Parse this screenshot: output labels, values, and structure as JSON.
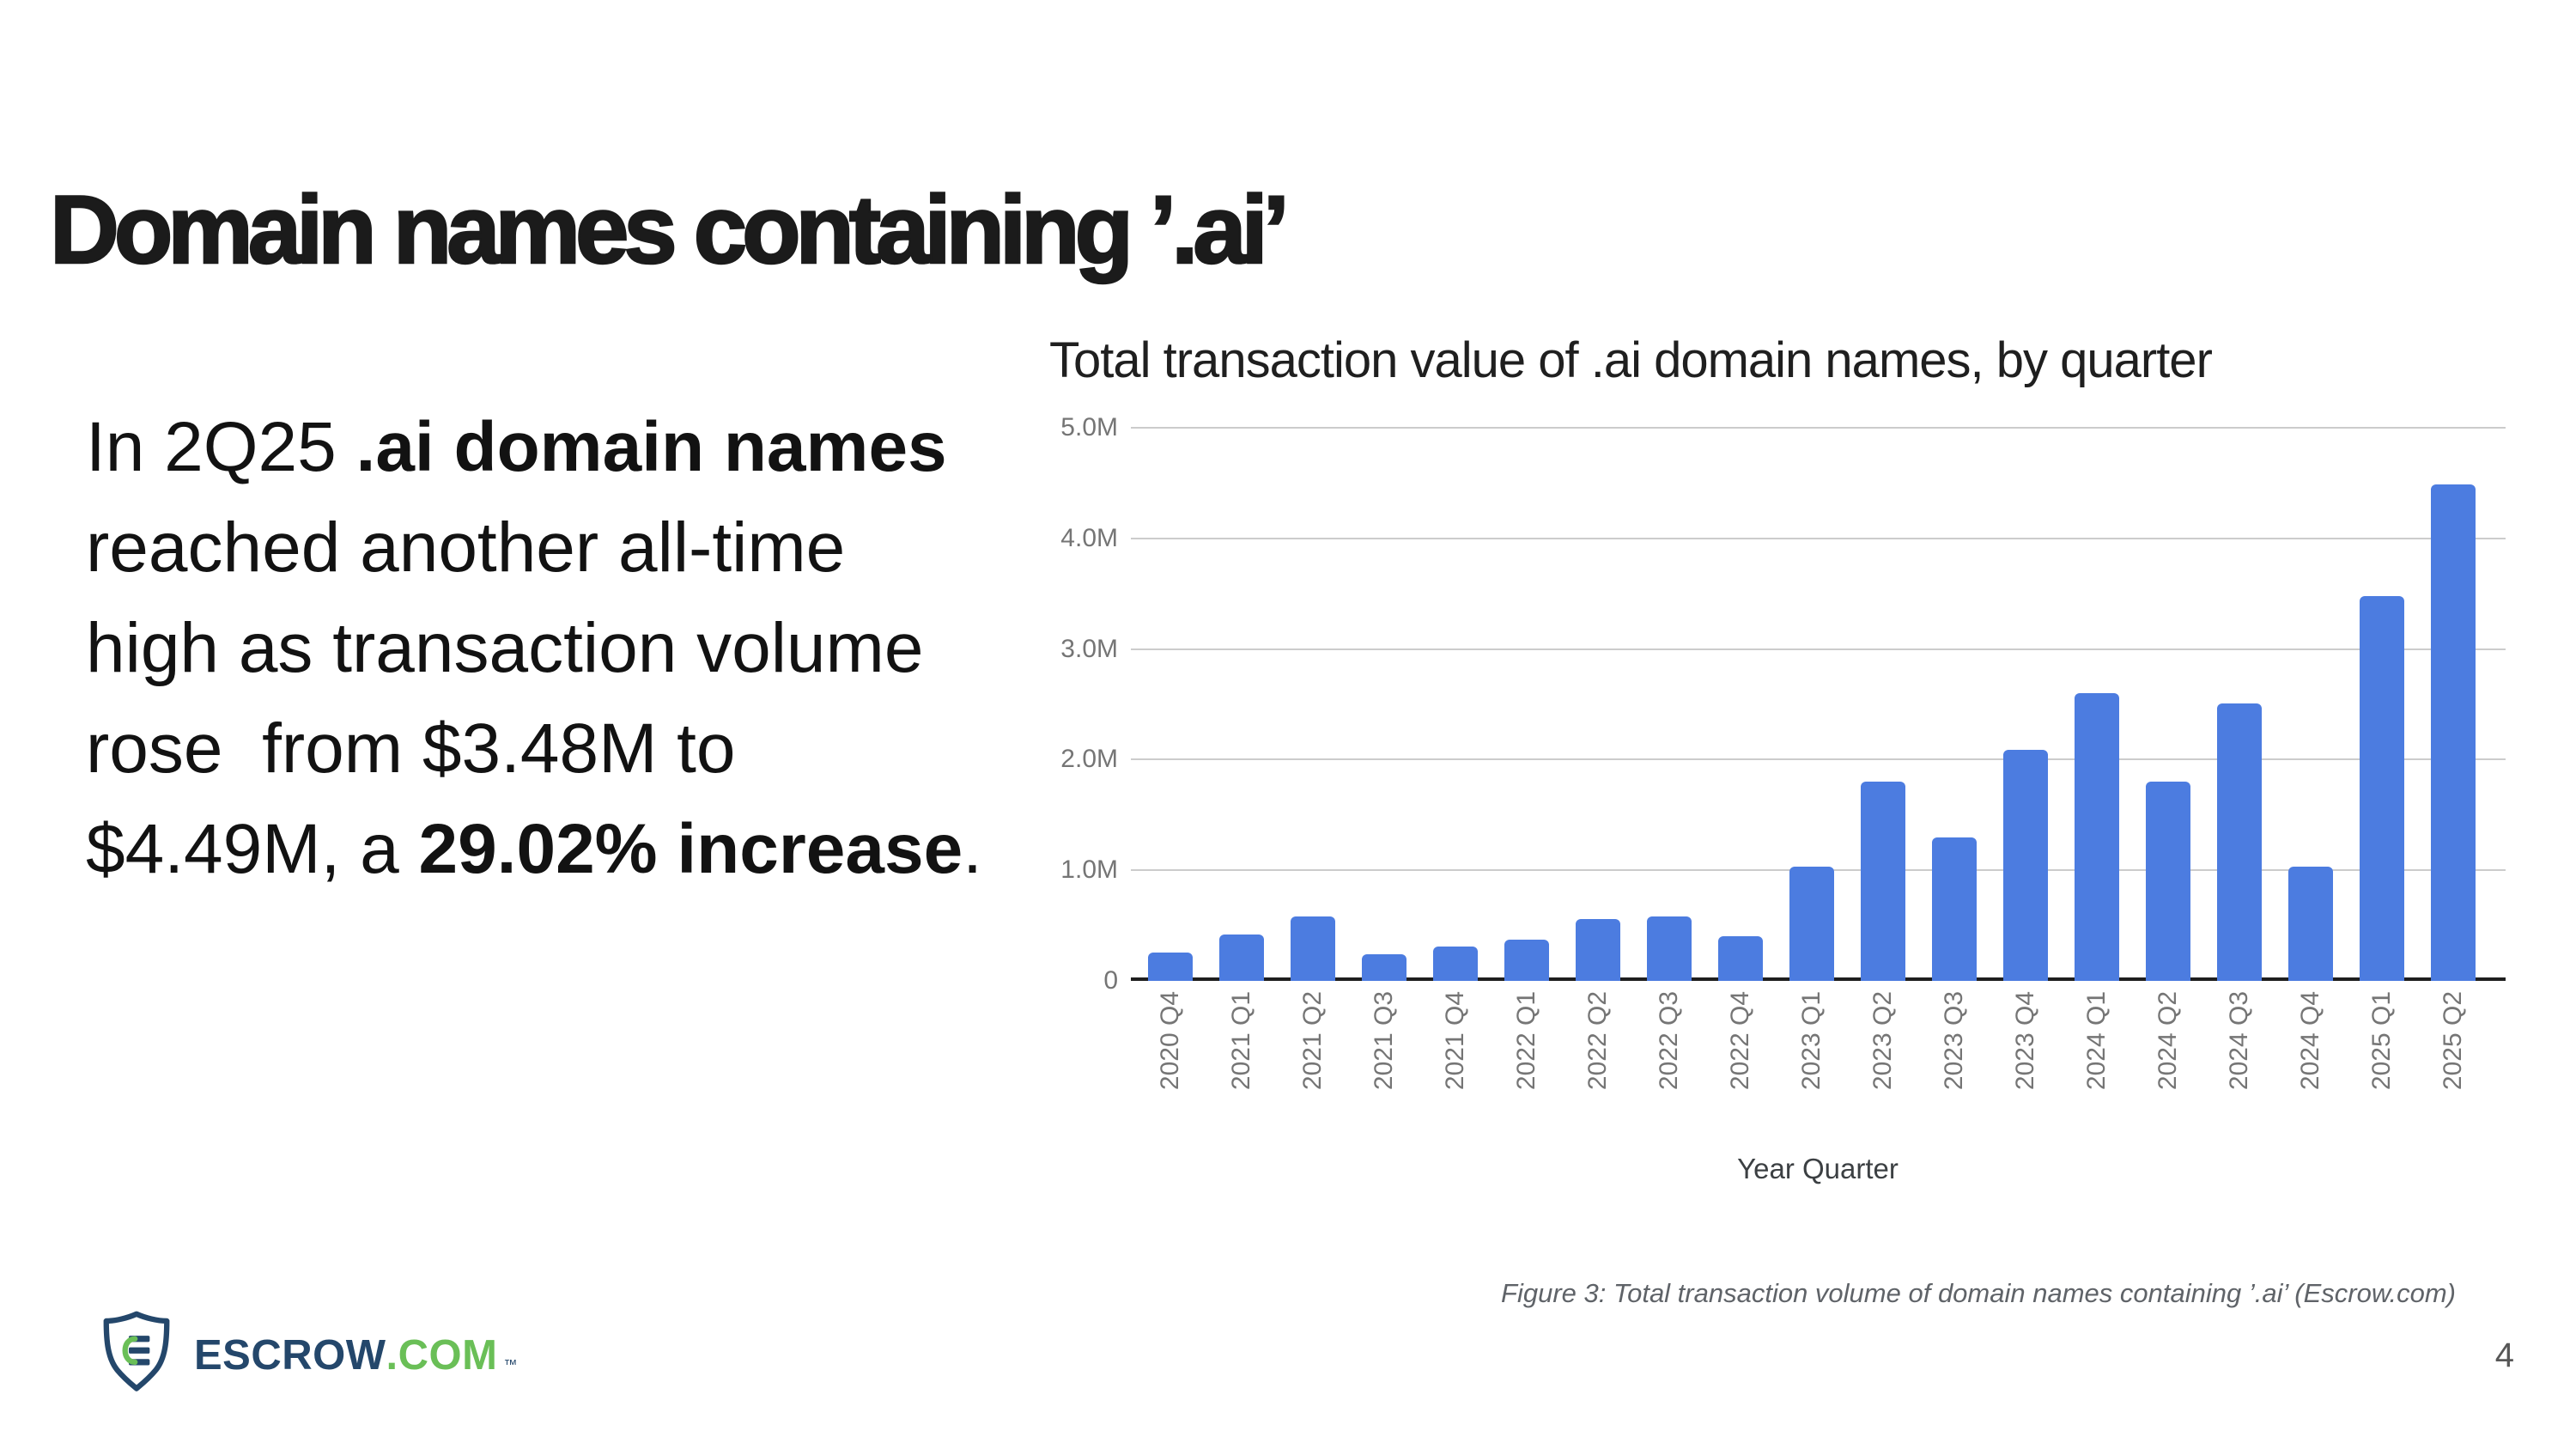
{
  "page": {
    "title": "Domain names containing ’.ai’",
    "page_number": "4"
  },
  "body_text": {
    "lines": [
      [
        {
          "t": "In 2Q25 "
        },
        {
          "t": ".ai domain names",
          "b": true
        }
      ],
      [
        {
          "t": "reached another all-time"
        }
      ],
      [
        {
          "t": "high as transaction volume"
        }
      ],
      [
        {
          "t": "rose  from $3.48M to"
        }
      ],
      [
        {
          "t": "$4.49M, a "
        },
        {
          "t": "29.02% increase",
          "b": true
        },
        {
          "t": "."
        }
      ]
    ]
  },
  "chart": {
    "title": "Total transaction value of .ai domain names, by quarter",
    "x_axis_title": "Year Quarter"
  },
  "chart_data": {
    "type": "bar",
    "title": "Total transaction value of .ai domain names, by quarter",
    "xlabel": "Year Quarter",
    "ylabel": "",
    "categories": [
      "2020 Q4",
      "2021 Q1",
      "2021 Q2",
      "2021 Q3",
      "2021 Q4",
      "2022 Q1",
      "2022 Q2",
      "2022 Q3",
      "2022 Q4",
      "2023 Q1",
      "2023 Q2",
      "2023 Q3",
      "2023 Q4",
      "2024 Q1",
      "2024 Q2",
      "2024 Q3",
      "2024 Q4",
      "2025 Q1",
      "2025 Q2"
    ],
    "values": [
      260000,
      420000,
      580000,
      240000,
      310000,
      370000,
      560000,
      580000,
      400000,
      1030000,
      1800000,
      1300000,
      2090000,
      2600000,
      1800000,
      2510000,
      1030000,
      3480000,
      4490000
    ],
    "ylim": [
      0,
      5000000
    ],
    "y_tick_labels": [
      "0",
      "1.0M",
      "2.0M",
      "3.0M",
      "4.0M",
      "5.0M"
    ],
    "grid": true,
    "legend": "none",
    "bar_color": "#4c7ce0"
  },
  "caption": "Figure 3: Total transaction volume of domain names containing ’.ai’ (Escrow.com)",
  "logo": {
    "brand": "ESCROW",
    "tld": ".COM",
    "tm": "™"
  },
  "colors": {
    "bar_blue": "#4c7ce0",
    "logo_navy": "#24476b",
    "logo_green": "#6abf57",
    "gridline_gray": "#cccccc",
    "axis_black": "#1f1f1f",
    "tick_gray": "#757575"
  }
}
